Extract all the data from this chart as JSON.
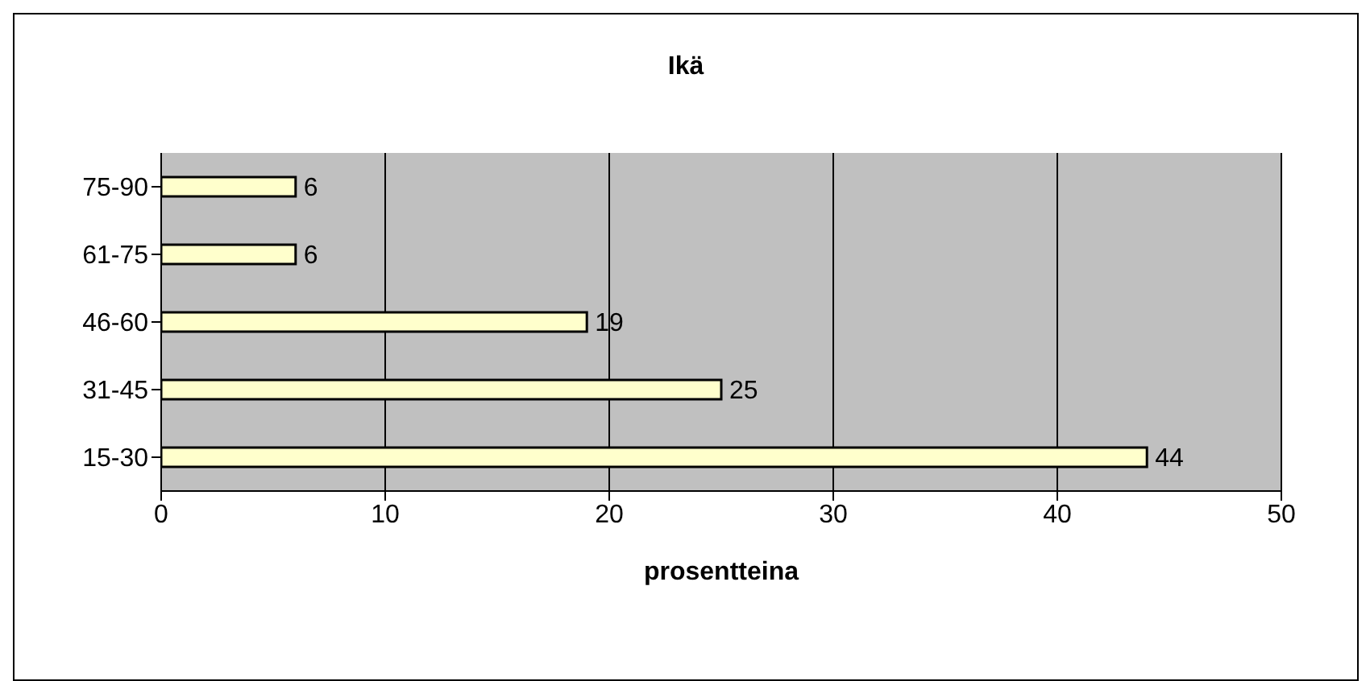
{
  "chart_data": {
    "type": "bar",
    "orientation": "horizontal",
    "title": "Ikä",
    "xlabel": "prosentteina",
    "categories": [
      "75-90",
      "61-75",
      "46-60",
      "31-45",
      "15-30"
    ],
    "values": [
      6,
      6,
      19,
      25,
      44
    ],
    "color": "#ffffcc",
    "xlim": [
      0,
      50
    ],
    "xticks": [
      0,
      10,
      20,
      30,
      40,
      50
    ],
    "grid": "x",
    "data_labels": true
  }
}
